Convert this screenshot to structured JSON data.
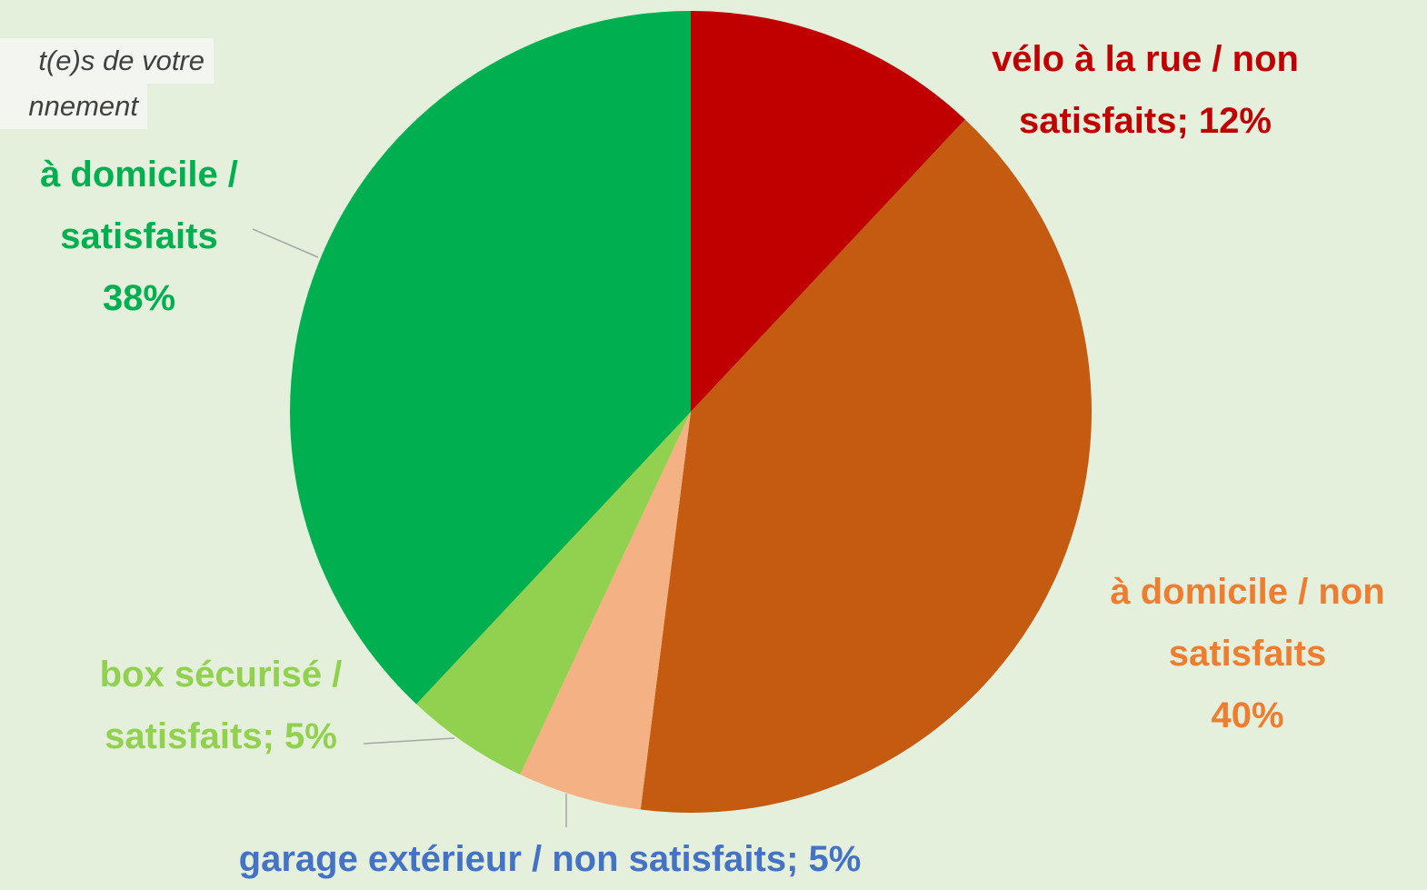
{
  "chart_data": {
    "type": "pie",
    "annotation": [
      "t(e)s de votre",
      "nnement"
    ],
    "categories": [
      "vélo à la rue / non satisfaits;",
      "à domicile / non satisfaits",
      "garage extérieur / non satisfaits;",
      "box sécurisé / satisfaits;",
      "à domicile / satisfaits"
    ],
    "values": [
      12,
      40,
      5,
      5,
      38
    ],
    "value_labels": [
      "12%",
      "40%",
      "5%",
      "5%",
      "38%"
    ],
    "colors": [
      "#c00000",
      "#c55a11",
      "#f4b183",
      "#92d050",
      "#00b050"
    ],
    "label_colors": [
      "#c00000",
      "#ed7d31",
      "#4472c4",
      "#92d050",
      "#00b050"
    ]
  }
}
